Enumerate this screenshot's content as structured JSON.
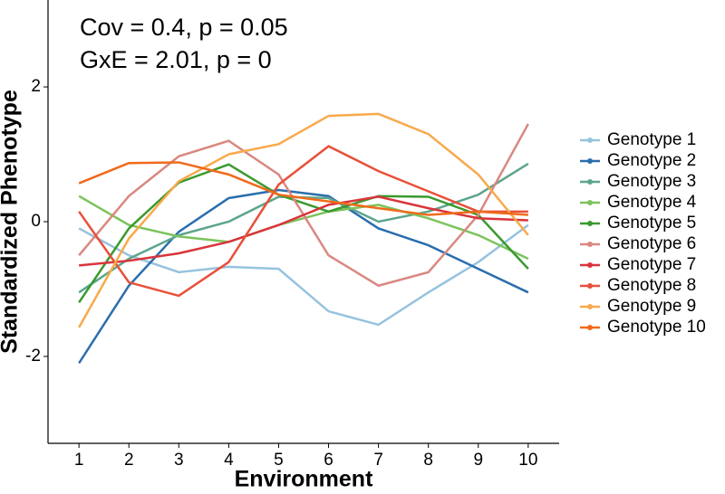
{
  "chart_data": {
    "type": "line",
    "annotations": [
      "Cov = 0.4, p = 0.05",
      "GxE = 2.01, p = 0"
    ],
    "xlabel": "Environment",
    "ylabel": "Standardized Phenotype",
    "x": [
      1,
      2,
      3,
      4,
      5,
      6,
      7,
      8,
      9,
      10
    ],
    "xlim": [
      0.38,
      10.62
    ],
    "xticks": [
      1,
      2,
      3,
      4,
      5,
      6,
      7,
      8,
      9,
      10
    ],
    "ylim": [
      -3.29,
      3.29
    ],
    "yticks": [
      -2,
      0,
      2
    ],
    "series": [
      {
        "name": "Genotype 1",
        "color": "#97c3de",
        "values": [
          -0.1,
          -0.5,
          -0.75,
          -0.67,
          -0.7,
          -1.33,
          -1.53,
          -1.05,
          -0.6,
          -0.05
        ]
      },
      {
        "name": "Genotype 2",
        "color": "#2b6ead",
        "values": [
          -2.1,
          -0.95,
          -0.15,
          0.35,
          0.47,
          0.38,
          -0.1,
          -0.35,
          -0.7,
          -1.05
        ]
      },
      {
        "name": "Genotype 3",
        "color": "#5ca58b",
        "values": [
          -1.05,
          -0.55,
          -0.2,
          0.0,
          0.37,
          0.35,
          0.0,
          0.15,
          0.4,
          0.86
        ]
      },
      {
        "name": "Genotype 4",
        "color": "#7cc35c",
        "values": [
          0.38,
          -0.05,
          -0.22,
          -0.3,
          -0.05,
          0.15,
          0.25,
          0.05,
          -0.2,
          -0.55
        ]
      },
      {
        "name": "Genotype 5",
        "color": "#3a9a2e",
        "values": [
          -1.2,
          -0.1,
          0.58,
          0.85,
          0.4,
          0.15,
          0.38,
          0.37,
          0.1,
          -0.7
        ]
      },
      {
        "name": "Genotype 6",
        "color": "#d98880",
        "values": [
          -0.5,
          0.38,
          0.97,
          1.2,
          0.7,
          -0.5,
          -0.95,
          -0.75,
          0.1,
          1.45
        ]
      },
      {
        "name": "Genotype 7",
        "color": "#d9343a",
        "values": [
          -0.65,
          -0.58,
          -0.47,
          -0.3,
          -0.05,
          0.25,
          0.37,
          0.2,
          0.05,
          0.02
        ]
      },
      {
        "name": "Genotype 8",
        "color": "#e8503a",
        "values": [
          0.15,
          -0.9,
          -1.1,
          -0.6,
          0.55,
          1.12,
          0.75,
          0.45,
          0.15,
          0.15
        ]
      },
      {
        "name": "Genotype 9",
        "color": "#f9a94b",
        "values": [
          -1.57,
          -0.25,
          0.6,
          1.0,
          1.15,
          1.57,
          1.6,
          1.3,
          0.7,
          -0.2
        ]
      },
      {
        "name": "Genotype 10",
        "color": "#f06a1a",
        "values": [
          0.57,
          0.87,
          0.88,
          0.7,
          0.4,
          0.3,
          0.2,
          0.1,
          0.15,
          0.1
        ]
      }
    ]
  }
}
